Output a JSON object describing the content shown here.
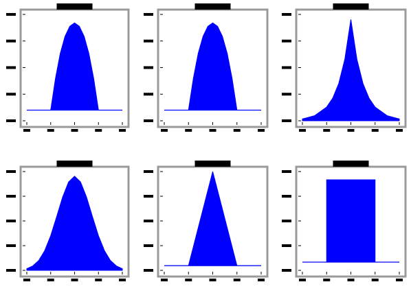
{
  "chart_data": [
    {
      "type": "area",
      "title": "",
      "xlabel": "",
      "ylabel": "",
      "xlim": [
        -2,
        2
      ],
      "ylim": [
        -0.05,
        0.45
      ],
      "grid": false,
      "color": "#0000ff",
      "x": [
        -2.0,
        -1.5,
        -1.0,
        -0.8,
        -0.6,
        -0.4,
        -0.2,
        0.0,
        0.2,
        0.4,
        0.6,
        0.8,
        1.0,
        1.5,
        2.0
      ],
      "values": [
        0.0,
        0.0,
        0.0,
        0.149,
        0.266,
        0.347,
        0.394,
        0.41,
        0.394,
        0.347,
        0.266,
        0.149,
        0.0,
        0.0,
        0.0
      ]
    },
    {
      "type": "area",
      "title": "",
      "xlabel": "",
      "ylabel": "",
      "xlim": [
        -2,
        2
      ],
      "ylim": [
        -0.05,
        0.45
      ],
      "grid": false,
      "color": "#0000ff",
      "x": [
        -2.0,
        -1.5,
        -1.0,
        -0.8,
        -0.6,
        -0.4,
        -0.2,
        0.0,
        0.2,
        0.4,
        0.6,
        0.8,
        1.0,
        1.5,
        2.0
      ],
      "values": [
        0.0,
        0.0,
        0.0,
        0.149,
        0.266,
        0.347,
        0.394,
        0.41,
        0.394,
        0.347,
        0.266,
        0.149,
        0.0,
        0.0,
        0.0
      ]
    },
    {
      "type": "area",
      "title": "",
      "xlabel": "",
      "ylabel": "",
      "xlim": [
        -2,
        2
      ],
      "ylim": [
        0,
        1.05
      ],
      "grid": false,
      "color": "#0000ff",
      "x": [
        -2.0,
        -1.5,
        -1.0,
        -0.75,
        -0.5,
        -0.25,
        0.0,
        0.25,
        0.5,
        0.75,
        1.0,
        1.5,
        2.0
      ],
      "values": [
        0.018,
        0.05,
        0.135,
        0.223,
        0.368,
        0.607,
        1.0,
        0.607,
        0.368,
        0.223,
        0.135,
        0.05,
        0.018
      ]
    },
    {
      "type": "area",
      "title": "",
      "xlabel": "",
      "ylabel": "",
      "xlim": [
        -2,
        2
      ],
      "ylim": [
        0,
        1.05
      ],
      "grid": false,
      "color": "#0000ff",
      "x": [
        -2.0,
        -1.75,
        -1.5,
        -1.25,
        -1.0,
        -0.75,
        -0.5,
        -0.25,
        0.0,
        0.25,
        0.5,
        0.75,
        1.0,
        1.25,
        1.5,
        1.75,
        2.0
      ],
      "values": [
        0.018,
        0.047,
        0.105,
        0.21,
        0.368,
        0.57,
        0.779,
        0.939,
        1.0,
        0.939,
        0.779,
        0.57,
        0.368,
        0.21,
        0.105,
        0.047,
        0.018
      ]
    },
    {
      "type": "area",
      "title": "",
      "xlabel": "",
      "ylabel": "",
      "xlim": [
        -2,
        2
      ],
      "ylim": [
        -0.05,
        1.0
      ],
      "grid": false,
      "color": "#0000ff",
      "x": [
        -2.0,
        -1.5,
        -1.0,
        0.0,
        1.0,
        1.5,
        2.0
      ],
      "values": [
        0.0,
        0.0,
        0.0,
        1.0,
        0.0,
        0.0,
        0.0
      ]
    },
    {
      "type": "area",
      "title": "",
      "xlabel": "",
      "ylabel": "",
      "xlim": [
        -2,
        2
      ],
      "ylim": [
        -0.05,
        0.55
      ],
      "grid": false,
      "color": "#0000ff",
      "x": [
        -2.0,
        -1.5,
        -1.0,
        -1.0,
        1.0,
        1.0,
        1.5,
        2.0
      ],
      "values": [
        0.0,
        0.0,
        0.0,
        0.5,
        0.5,
        0.0,
        0.0,
        0.0
      ]
    }
  ]
}
